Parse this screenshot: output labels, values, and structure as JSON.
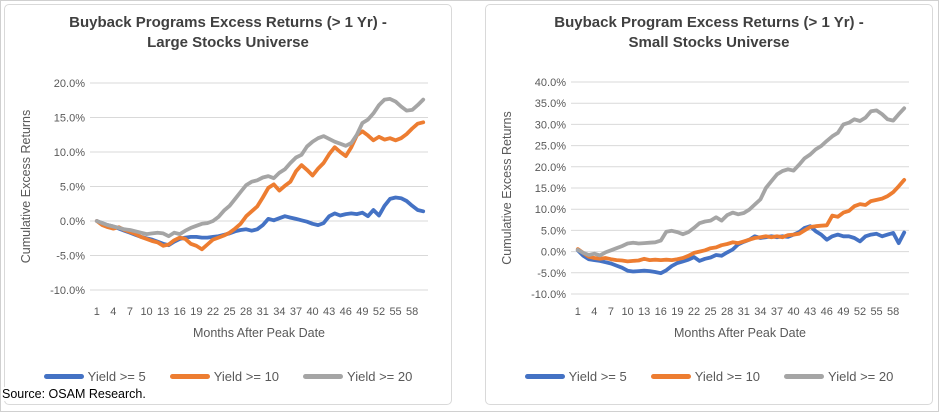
{
  "source_label": "Source: OSAM Research.",
  "colors": {
    "series_blue": "#4472C4",
    "series_orange": "#ED7D31",
    "series_gray": "#A5A5A5",
    "title_text": "#404040",
    "axis_text": "#595959",
    "gridline": "#D9D9D9",
    "panel_border": "#D9D9D9"
  },
  "chart_data": [
    {
      "type": "line",
      "title": "Buyback Programs Excess Returns (> 1 Yr) - Large Stocks Universe",
      "title_line1": "Buyback Programs Excess Returns (> 1 Yr) -",
      "title_line2": "Large Stocks Universe",
      "xlabel": "Months After Peak Date",
      "ylabel": "Cumulative Excess Returns",
      "ylim": [
        -10,
        20
      ],
      "grid": true,
      "legend_position": "bottom",
      "unit": "percent",
      "x_range": [
        1,
        60
      ],
      "xticks": [
        1,
        4,
        7,
        10,
        13,
        16,
        19,
        22,
        25,
        28,
        31,
        34,
        37,
        40,
        43,
        46,
        49,
        52,
        55,
        58
      ],
      "ytick_values": [
        20,
        15,
        10,
        5,
        0,
        -5,
        -10
      ],
      "ytick_labels": [
        "20.0%",
        "15.0%",
        "10.0%",
        "5.0%",
        "0.0%",
        "-5.0%",
        "-10.0%"
      ],
      "series": [
        {
          "name": "Yield >= 5",
          "color": "#4472C4",
          "values": [
            0.0,
            -0.3,
            -0.6,
            -0.8,
            -1.1,
            -1.4,
            -1.7,
            -2.0,
            -2.3,
            -2.5,
            -2.7,
            -3.0,
            -3.3,
            -3.5,
            -3.0,
            -2.6,
            -2.4,
            -2.3,
            -2.3,
            -2.4,
            -2.4,
            -2.3,
            -2.2,
            -2.0,
            -1.8,
            -1.5,
            -1.3,
            -1.2,
            -1.4,
            -1.2,
            -0.6,
            0.3,
            0.1,
            0.4,
            0.7,
            0.5,
            0.3,
            0.1,
            -0.1,
            -0.4,
            -0.6,
            -0.3,
            0.7,
            1.1,
            0.8,
            1.0,
            1.1,
            1.0,
            1.2,
            0.7,
            1.6,
            0.8,
            2.2,
            3.2,
            3.4,
            3.3,
            2.9,
            2.2,
            1.6,
            1.4
          ]
        },
        {
          "name": "Yield >= 10",
          "color": "#ED7D31",
          "values": [
            0.0,
            -0.6,
            -0.9,
            -1.1,
            -0.9,
            -1.3,
            -1.6,
            -1.9,
            -2.3,
            -2.6,
            -2.9,
            -3.1,
            -3.6,
            -3.4,
            -2.8,
            -2.4,
            -2.6,
            -3.3,
            -3.6,
            -4.1,
            -3.4,
            -2.7,
            -2.4,
            -2.1,
            -1.7,
            -1.1,
            -0.4,
            0.7,
            1.4,
            2.1,
            3.4,
            4.8,
            5.3,
            4.4,
            5.1,
            5.7,
            7.2,
            8.1,
            7.4,
            6.6,
            7.6,
            8.4,
            9.7,
            10.7,
            10.0,
            9.4,
            10.7,
            12.4,
            13.0,
            12.4,
            11.7,
            12.2,
            11.8,
            12.0,
            11.7,
            12.0,
            12.6,
            13.4,
            14.1,
            14.3
          ]
        },
        {
          "name": "Yield >= 20",
          "color": "#A5A5A5",
          "values": [
            0.0,
            -0.3,
            -0.6,
            -0.8,
            -1.0,
            -1.2,
            -1.3,
            -1.5,
            -1.7,
            -1.9,
            -1.8,
            -1.7,
            -1.8,
            -2.2,
            -1.7,
            -1.9,
            -1.4,
            -1.0,
            -0.7,
            -0.4,
            -0.3,
            0.0,
            0.6,
            1.5,
            2.2,
            3.2,
            4.2,
            5.2,
            5.7,
            5.9,
            6.3,
            6.5,
            6.2,
            7.0,
            7.5,
            8.4,
            9.2,
            9.6,
            10.8,
            11.5,
            12.0,
            12.3,
            11.9,
            11.5,
            11.2,
            10.9,
            11.3,
            12.5,
            14.2,
            14.7,
            15.6,
            16.8,
            17.6,
            17.7,
            17.3,
            16.6,
            16.0,
            16.1,
            16.8,
            17.6
          ]
        }
      ]
    },
    {
      "type": "line",
      "title": "Buyback Program Excess Returns (> 1 Yr) - Small Stocks Universe",
      "title_line1": "Buyback Program Excess Returns (> 1 Yr) -",
      "title_line2": "Small Stocks Universe",
      "xlabel": "Months After Peak Date",
      "ylabel": "Cumulative Excess Returns",
      "ylim": [
        -10,
        40
      ],
      "grid": true,
      "legend_position": "bottom",
      "unit": "percent",
      "x_range": [
        1,
        60
      ],
      "xticks": [
        1,
        4,
        7,
        10,
        13,
        16,
        19,
        22,
        25,
        28,
        31,
        34,
        37,
        40,
        43,
        46,
        49,
        52,
        55,
        58
      ],
      "ytick_values": [
        40,
        35,
        30,
        25,
        20,
        15,
        10,
        5,
        0,
        -5,
        -10
      ],
      "ytick_labels": [
        "40.0%",
        "35.0%",
        "30.0%",
        "25.0%",
        "20.0%",
        "15.0%",
        "10.0%",
        "5.0%",
        "0.0%",
        "-5.0%",
        "-10.0%"
      ],
      "series": [
        {
          "name": "Yield >= 5",
          "color": "#4472C4",
          "values": [
            0.3,
            -1.0,
            -1.8,
            -2.0,
            -2.2,
            -2.5,
            -2.8,
            -3.3,
            -3.8,
            -4.5,
            -4.7,
            -4.6,
            -4.5,
            -4.6,
            -4.8,
            -5.1,
            -4.4,
            -3.4,
            -2.7,
            -2.3,
            -1.9,
            -1.3,
            -2.2,
            -1.7,
            -1.4,
            -0.8,
            -1.0,
            -0.2,
            0.5,
            1.7,
            2.3,
            2.8,
            3.6,
            3.2,
            3.4,
            3.6,
            3.4,
            3.6,
            3.5,
            4.0,
            4.6,
            5.6,
            6.0,
            4.8,
            4.0,
            2.8,
            3.6,
            4.0,
            3.6,
            3.6,
            3.2,
            2.4,
            3.6,
            4.0,
            4.2,
            3.6,
            4.0,
            4.4,
            2.0,
            4.5
          ]
        },
        {
          "name": "Yield >= 10",
          "color": "#ED7D31",
          "values": [
            0.6,
            -0.3,
            -1.2,
            -1.5,
            -1.7,
            -1.5,
            -1.8,
            -2.0,
            -2.1,
            -2.3,
            -2.2,
            -2.1,
            -1.7,
            -2.0,
            -1.9,
            -2.0,
            -1.9,
            -2.0,
            -1.8,
            -1.5,
            -1.0,
            -0.3,
            0.0,
            0.3,
            0.8,
            1.0,
            1.5,
            1.8,
            2.2,
            2.0,
            2.4,
            2.8,
            3.2,
            3.4,
            3.6,
            3.4,
            3.6,
            3.4,
            3.9,
            4.0,
            4.2,
            5.0,
            5.8,
            6.0,
            6.1,
            6.2,
            8.5,
            8.2,
            9.2,
            9.6,
            10.7,
            11.2,
            11.0,
            11.9,
            12.2,
            12.5,
            13.1,
            14.0,
            15.4,
            16.9
          ]
        },
        {
          "name": "Yield >= 20",
          "color": "#A5A5A5",
          "values": [
            0.4,
            -0.3,
            -0.8,
            -0.5,
            -0.9,
            -0.2,
            0.3,
            0.8,
            1.3,
            1.9,
            2.1,
            1.9,
            2.0,
            2.1,
            2.2,
            2.6,
            4.7,
            4.9,
            4.6,
            4.1,
            4.6,
            5.6,
            6.7,
            7.1,
            7.3,
            8.1,
            7.3,
            8.6,
            9.2,
            8.8,
            9.1,
            9.9,
            11.1,
            12.3,
            15.0,
            16.6,
            18.2,
            19.0,
            19.4,
            19.1,
            20.5,
            22.0,
            22.9,
            24.1,
            24.9,
            26.1,
            27.2,
            28.0,
            30.0,
            30.4,
            31.2,
            30.8,
            31.6,
            33.1,
            33.3,
            32.4,
            31.2,
            30.9,
            32.4,
            33.8
          ]
        }
      ]
    }
  ]
}
